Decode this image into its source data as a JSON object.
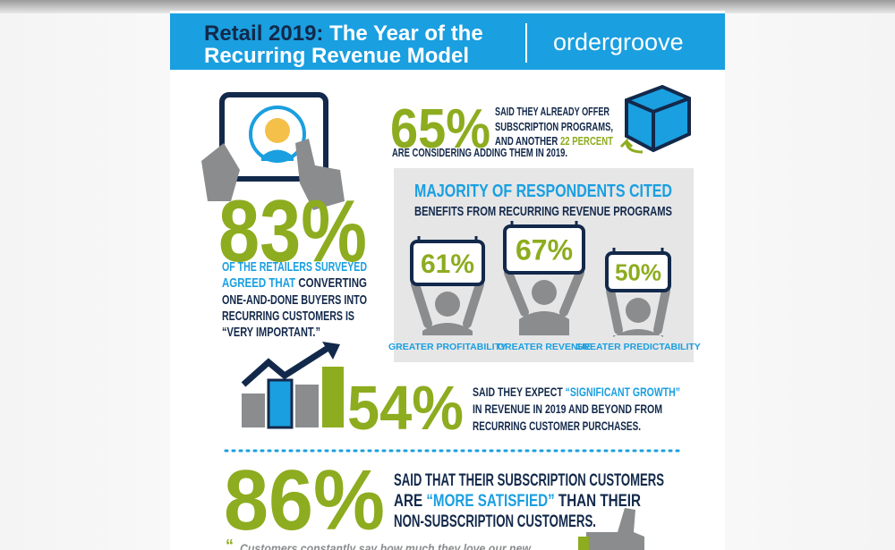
{
  "header": {
    "title_lead": "Retail 2019:",
    "title_rest": "The Year of the",
    "title_line2": "Recurring Revenue Model",
    "logo": "ordergroove"
  },
  "stat_83": {
    "value": "83%",
    "line1": "OF THE RETAILERS SURVEYED",
    "line2_blue": "AGREED THAT",
    "line2_rest": "CONVERTING",
    "line3": "ONE-AND-DONE BUYERS INTO",
    "line4": "RECURRING CUSTOMERS IS",
    "line5": "“VERY IMPORTANT.”"
  },
  "stat_65": {
    "value": "65%",
    "line1": "SAID THEY ALREADY OFFER",
    "line2": "SUBSCRIPTION PROGRAMS,",
    "line3": "AND ANOTHER",
    "line3_green": "22 PERCENT",
    "line4": "ARE CONSIDERING ADDING THEM IN 2019."
  },
  "benefits": {
    "heading": "MAJORITY OF RESPONDENTS CITED",
    "subheading": "BENEFITS FROM RECURRING REVENUE PROGRAMS",
    "items": [
      {
        "value": "61%",
        "label": "GREATER PROFITABILITY"
      },
      {
        "value": "67%",
        "label": "GREATER  REVENUE"
      },
      {
        "value": "50%",
        "label": "GREATER PREDICTABILITY"
      }
    ]
  },
  "stat_54": {
    "value": "54%",
    "line1": "SAID THEY EXPECT",
    "line1_blue": "“SIGNIFICANT GROWTH”",
    "line2": "IN REVENUE IN 2019 AND BEYOND FROM",
    "line3": "RECURRING CUSTOMER PURCHASES."
  },
  "stat_86": {
    "value": "86%",
    "line1": "SAID THAT THEIR SUBSCRIPTION CUSTOMERS",
    "line2_pre": "ARE",
    "line2_blue": "“MORE SATISFIED”",
    "line2_post": "THAN THEIR",
    "line3": "NON-SUBSCRIPTION CUSTOMERS."
  },
  "quote": "Customers constantly say how much they love our new"
}
